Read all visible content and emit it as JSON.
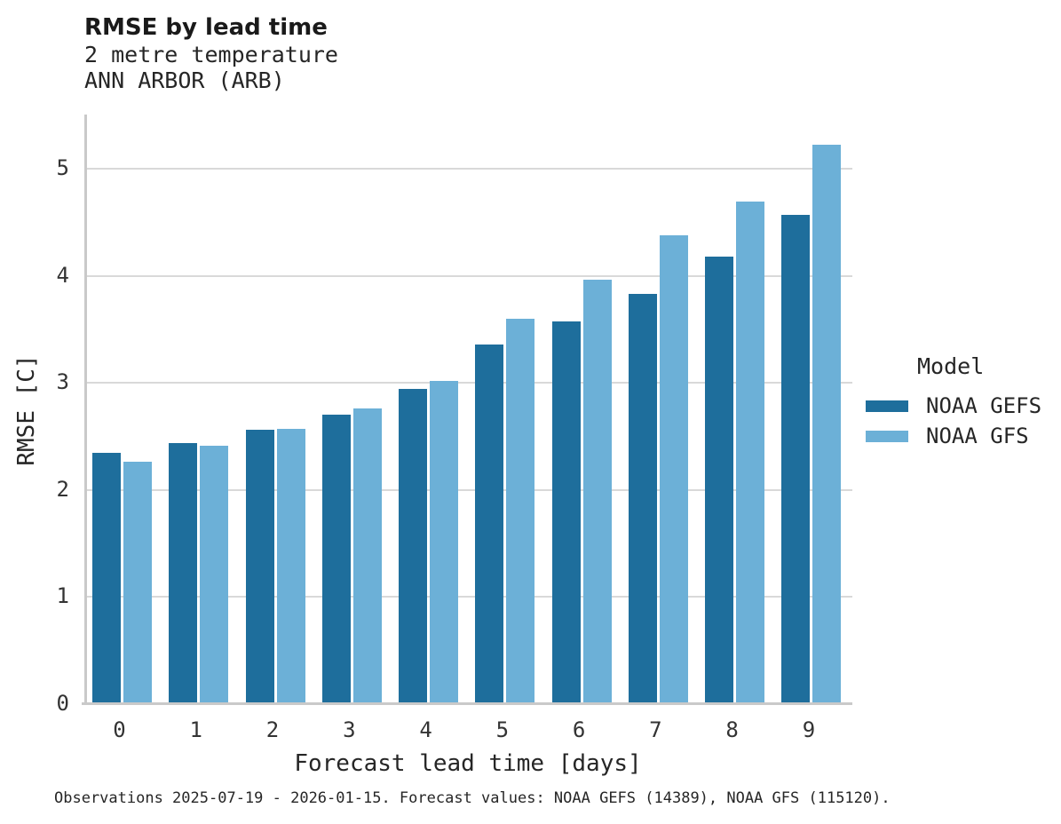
{
  "chart_data": {
    "type": "bar",
    "title": "RMSE by lead time",
    "subtitle": "2 metre temperature",
    "subtitle2": "ANN ARBOR (ARB)",
    "xlabel": "Forecast lead time [days]",
    "ylabel": "RMSE [C]",
    "categories": [
      "0",
      "1",
      "2",
      "3",
      "4",
      "5",
      "6",
      "7",
      "8",
      "9"
    ],
    "series": [
      {
        "name": "NOAA GEFS",
        "color": "#1e6e9c",
        "values": [
          2.35,
          2.44,
          2.56,
          2.7,
          2.94,
          3.36,
          3.57,
          3.83,
          4.18,
          4.57
        ]
      },
      {
        "name": "NOAA GFS",
        "color": "#6cb0d7",
        "values": [
          2.26,
          2.41,
          2.57,
          2.76,
          3.02,
          3.6,
          3.96,
          4.38,
          4.69,
          5.22
        ]
      }
    ],
    "ylim": [
      0,
      5.5
    ],
    "yticks": [
      0,
      1,
      2,
      3,
      4,
      5
    ],
    "grid": true,
    "legend_position": "right",
    "legend_title": "Model",
    "caption": "Observations 2025-07-19 - 2026-01-15. Forecast values: NOAA GEFS (14389), NOAA GFS (115120)."
  },
  "colors": {
    "grid": "#d9d9d9",
    "spine": "#c9c9c9",
    "text": "#262626"
  }
}
